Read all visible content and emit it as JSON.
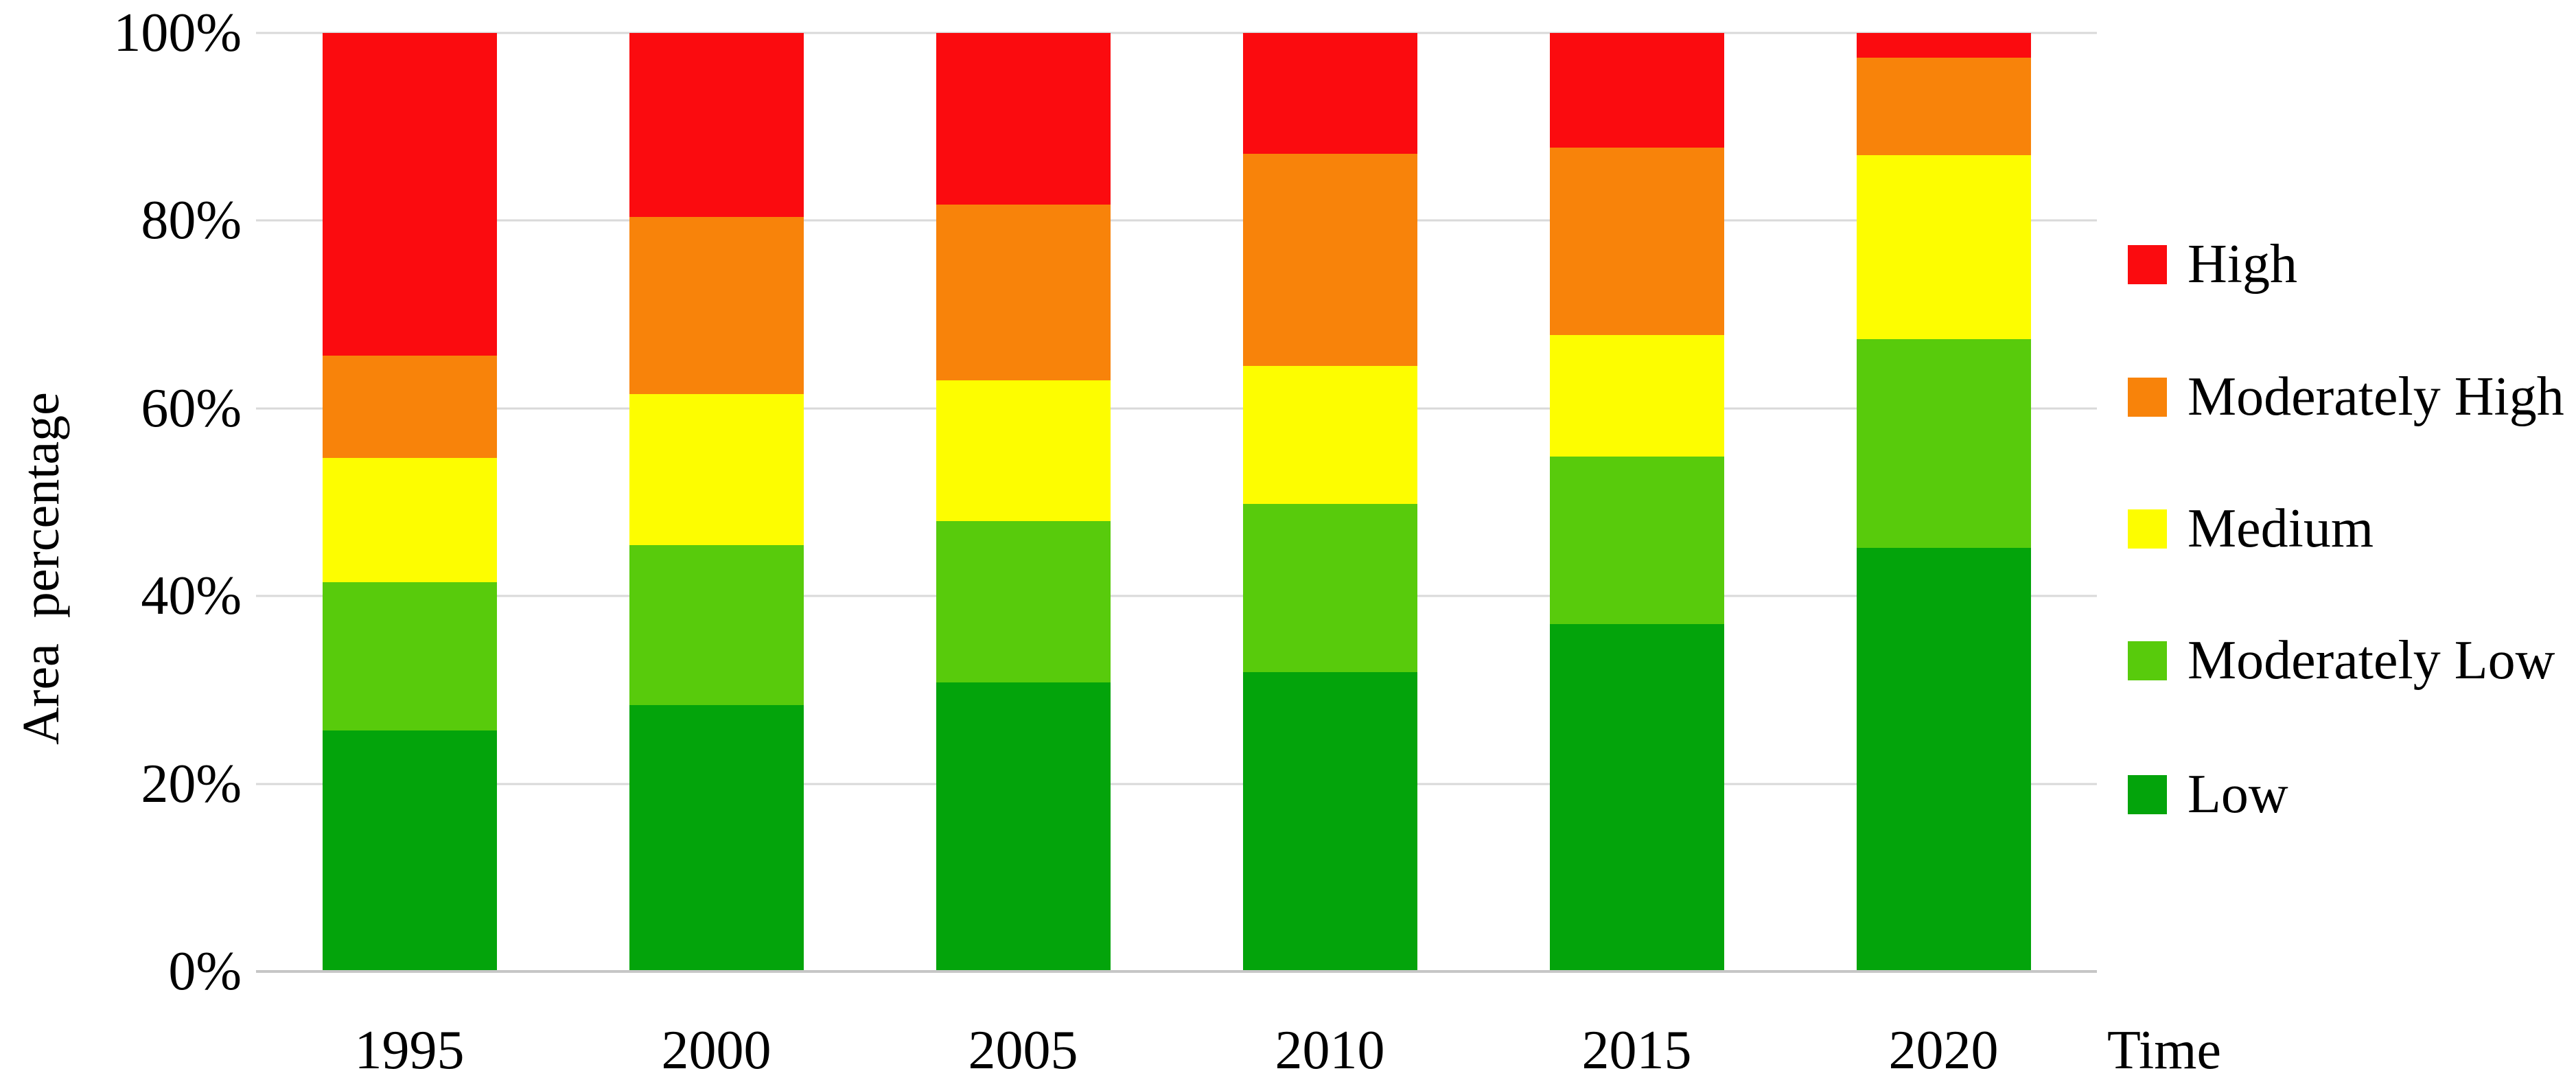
{
  "chart_data": {
    "type": "bar",
    "stacked": true,
    "stacked_to_100_percent": true,
    "title": "",
    "xlabel": "Time",
    "ylabel": "Area percentage",
    "categories": [
      "1995",
      "2000",
      "2005",
      "2010",
      "2015",
      "2020"
    ],
    "series": [
      {
        "name": "Low",
        "color": "#03a40b",
        "values": [
          25.7,
          28.4,
          30.8,
          31.9,
          37.0,
          45.1
        ]
      },
      {
        "name": "Moderately Low",
        "color": "#58cb0c",
        "values": [
          15.8,
          17.0,
          17.2,
          17.9,
          17.9,
          22.3
        ]
      },
      {
        "name": "Medium",
        "color": "#fdfd00",
        "values": [
          13.2,
          16.1,
          15.0,
          14.7,
          12.9,
          19.6
        ]
      },
      {
        "name": "Moderately High",
        "color": "#f8830a",
        "values": [
          10.9,
          18.9,
          18.7,
          22.6,
          20.0,
          10.4
        ]
      },
      {
        "name": "High",
        "color": "#fb0b0f",
        "values": [
          34.4,
          19.6,
          18.3,
          12.9,
          12.2,
          2.6
        ]
      }
    ],
    "y_ticks": [
      {
        "value": 0,
        "label": "0%"
      },
      {
        "value": 20,
        "label": "20%"
      },
      {
        "value": 40,
        "label": "40%"
      },
      {
        "value": 60,
        "label": "60%"
      },
      {
        "value": 80,
        "label": "80%"
      },
      {
        "value": 100,
        "label": "100%"
      }
    ],
    "ylim": [
      0,
      100
    ],
    "grid": true,
    "legend_position": "right",
    "legend_order": [
      "High",
      "Moderately High",
      "Medium",
      "Moderately Low",
      "Low"
    ]
  },
  "style": {
    "grid_color": "#d9d9d9",
    "axis_color": "#c6c6c6",
    "text_color": "#000000",
    "background_color": "#ffffff"
  }
}
